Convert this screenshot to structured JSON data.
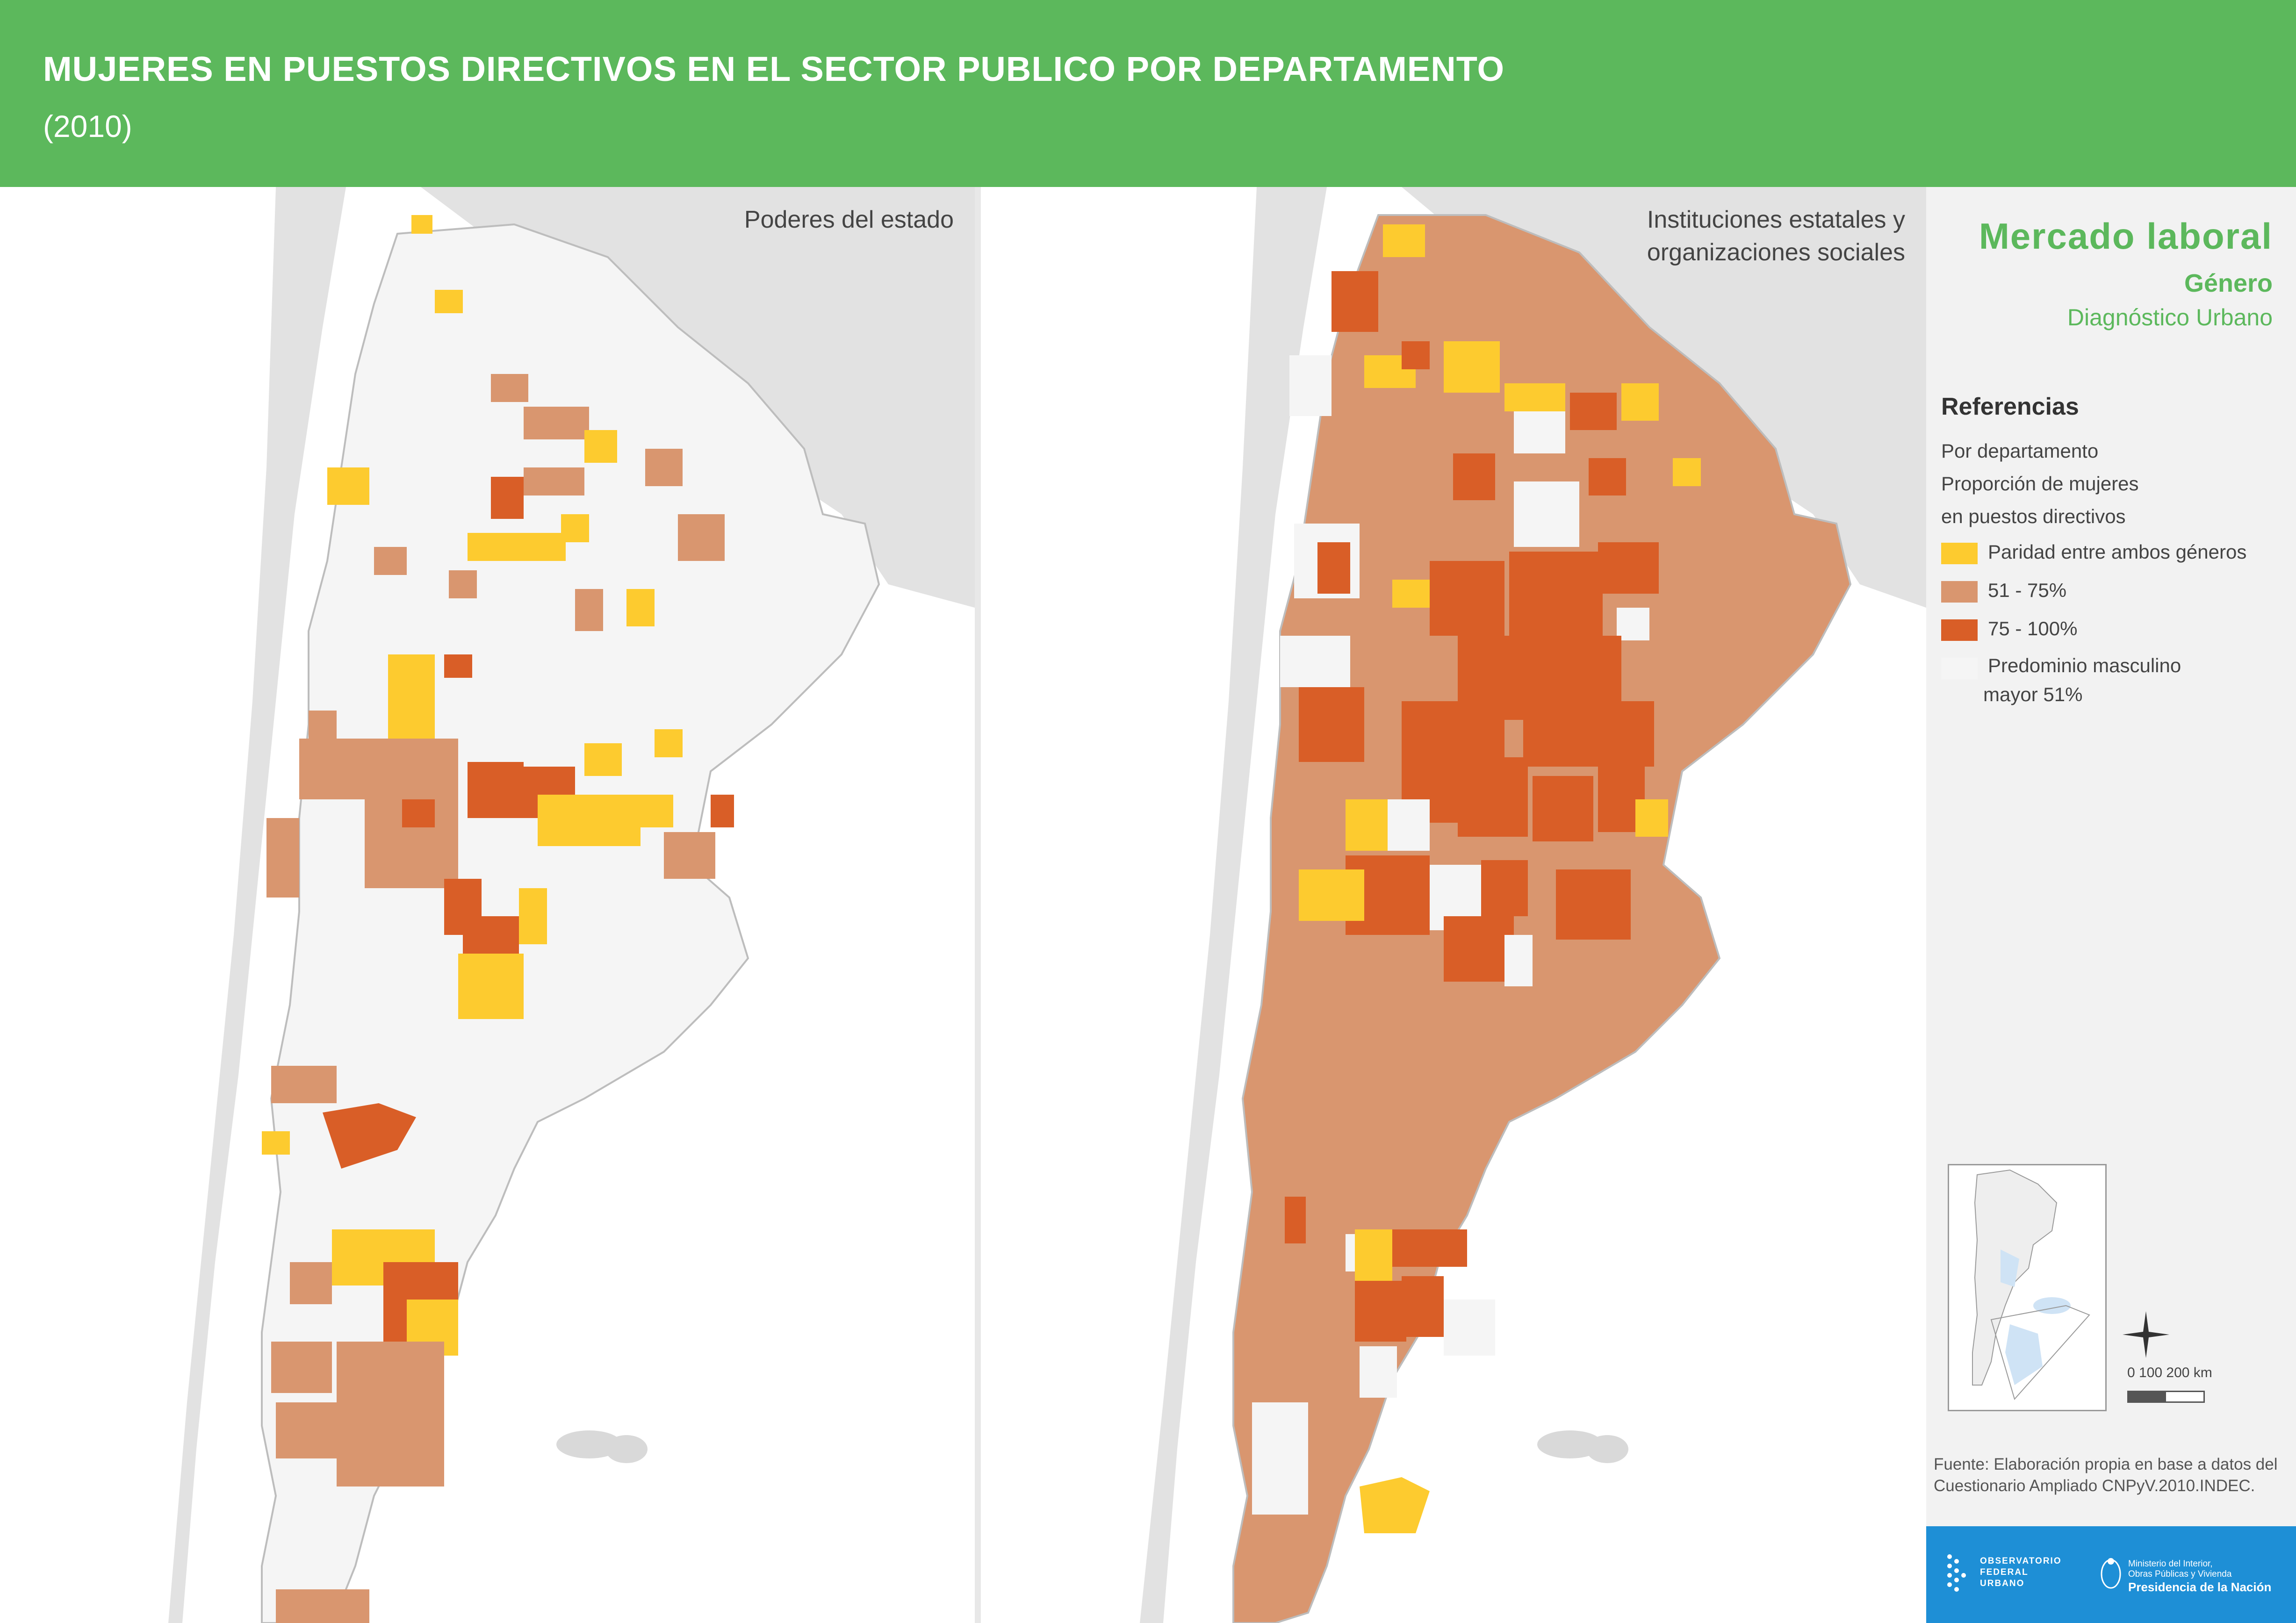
{
  "header": {
    "title": "MUJERES EN PUESTOS DIRECTIVOS EN EL SECTOR PUBLICO POR DEPARTAMENTO",
    "subtitle": "(2010)"
  },
  "maps": [
    {
      "label": "Poderes del estado"
    },
    {
      "label_lines": [
        "Instituciones estatales y",
        "organizaciones sociales"
      ]
    }
  ],
  "sidebar": {
    "title": "Mercado laboral",
    "subtitle": "Género",
    "project": "Diagnóstico Urbano",
    "legend_title": "Referencias",
    "legend_desc": [
      "Por departamento",
      "Proporción de mujeres",
      "en puestos directivos"
    ],
    "legend_items": [
      {
        "label": "Paridad entre ambos géneros",
        "color": "#fdcb2f"
      },
      {
        "label": "51 - 75%",
        "color": "#d9966f"
      },
      {
        "label": "75 - 100%",
        "color": "#d95e27"
      },
      {
        "label_lines": [
          "Predominio masculino",
          "mayor 51%"
        ],
        "color": "#f5f5f5"
      }
    ],
    "scale": "0    100   200 km",
    "source_lines": [
      "Fuente: Elaboración propia en base a datos del",
      "Cuestionario Ampliado CNPyV.2010.INDEC."
    ],
    "logo_ofu": [
      "OBSERVATORIO",
      "FEDERAL",
      "URBANO"
    ],
    "logo_min": [
      "Ministerio del Interior,",
      "Obras Públicas y Vivienda",
      "Presidencia de la Nación"
    ]
  },
  "colors": {
    "header": "#5cb85c",
    "parity": "#fdcb2f",
    "mid": "#d9966f",
    "high": "#d95e27",
    "male": "#f5f5f5",
    "neighbor": "#e2e2e2",
    "logo_band": "#1e8fd6"
  }
}
